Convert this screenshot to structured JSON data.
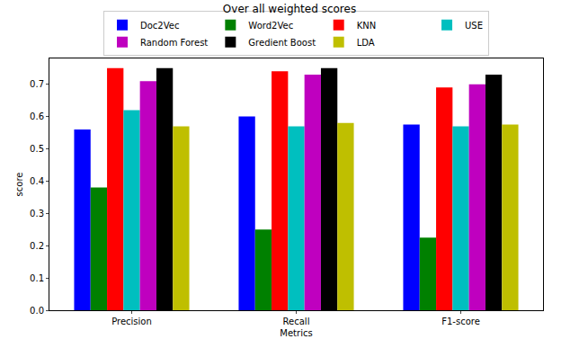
{
  "chart_data": {
    "type": "bar",
    "title": "Over all weighted scores",
    "x_label": "Metrics",
    "y_label": "score",
    "categories": [
      "Precision",
      "Recall",
      "F1-score"
    ],
    "series": [
      {
        "name": "Doc2Vec",
        "color": "#0000ff",
        "values": [
          0.56,
          0.6,
          0.575
        ]
      },
      {
        "name": "Word2Vec",
        "color": "#008000",
        "values": [
          0.38,
          0.25,
          0.225
        ]
      },
      {
        "name": "KNN",
        "color": "#ff0000",
        "values": [
          0.75,
          0.74,
          0.69
        ]
      },
      {
        "name": "USE",
        "color": "#00bfbf",
        "values": [
          0.62,
          0.57,
          0.57
        ]
      },
      {
        "name": "Random Forest",
        "color": "#bf00bf",
        "values": [
          0.71,
          0.73,
          0.7
        ]
      },
      {
        "name": "Gredient Boost",
        "color": "#000000",
        "values": [
          0.75,
          0.75,
          0.73
        ]
      },
      {
        "name": "LDA",
        "color": "#bfbf00",
        "values": [
          0.57,
          0.58,
          0.575
        ]
      }
    ],
    "ylim": [
      0,
      0.78
    ],
    "yticks": [
      {
        "value": 0,
        "label": "0.0"
      },
      {
        "value": 0.1,
        "label": "0.1"
      },
      {
        "value": 0.2,
        "label": "0.2"
      },
      {
        "value": 0.3,
        "label": "0.3"
      },
      {
        "value": 0.4,
        "label": "0.4"
      },
      {
        "value": 0.5,
        "label": "0.5"
      },
      {
        "value": 0.6,
        "label": "0.6"
      },
      {
        "value": 0.7,
        "label": "0.7"
      }
    ],
    "grid": false,
    "legend": "top"
  }
}
